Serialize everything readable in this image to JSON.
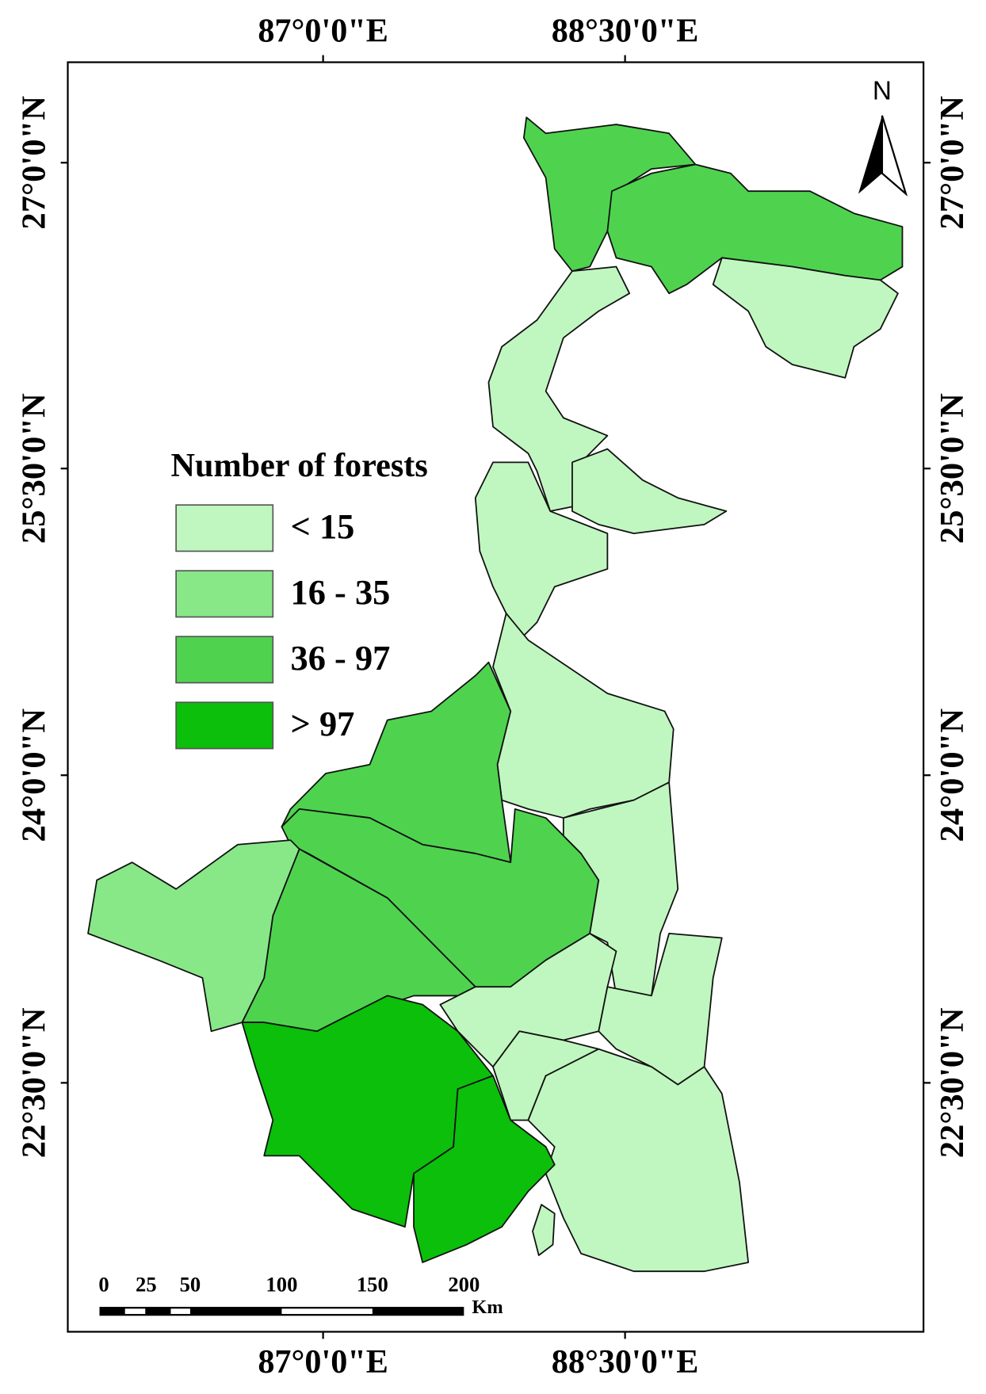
{
  "map": {
    "top_axis_labels": [
      "87°0'0\"E",
      "88°30'0\"E"
    ],
    "bottom_axis_labels": [
      "87°0'0\"E",
      "88°30'0\"E"
    ],
    "left_axis_labels": [
      "27°0'0\"N",
      "25°30'0\"N",
      "24°0'0\"N",
      "22°30'0\"N"
    ],
    "right_axis_labels": [
      "27°0'0\"N",
      "25°30'0\"N",
      "24°0'0\"N",
      "22°30'0\"N"
    ],
    "north_label": "N",
    "legend": {
      "title": "Number of forests",
      "items": [
        {
          "label": "< 15",
          "color": "#c0f7c0"
        },
        {
          "label": "16 - 35",
          "color": "#88e888"
        },
        {
          "label": "36 - 97",
          "color": "#4fd34f"
        },
        {
          "label": "> 97",
          "color": "#0bbf0b"
        }
      ]
    },
    "scale_bar": {
      "labels": [
        "0",
        "25",
        "50",
        "100",
        "150",
        "200"
      ],
      "unit": "Km"
    }
  }
}
